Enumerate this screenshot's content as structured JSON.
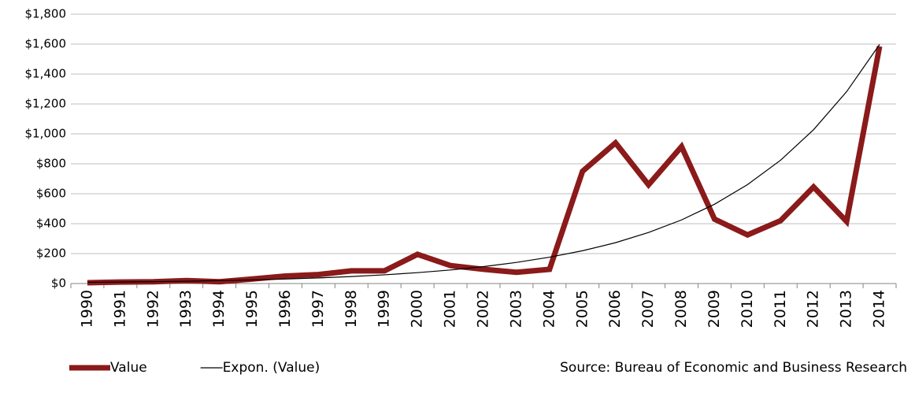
{
  "chart_data": {
    "type": "line",
    "categories": [
      "1990",
      "1991",
      "1992",
      "1993",
      "1994",
      "1995",
      "1996",
      "1997",
      "1998",
      "1999",
      "2000",
      "2001",
      "2002",
      "2003",
      "2004",
      "2005",
      "2006",
      "2007",
      "2008",
      "2009",
      "2010",
      "2011",
      "2012",
      "2013",
      "2014"
    ],
    "series": [
      {
        "name": "Value",
        "color": "#8b1a1a",
        "width": 7,
        "values": [
          5,
          10,
          12,
          20,
          12,
          30,
          50,
          60,
          85,
          85,
          195,
          120,
          95,
          75,
          95,
          750,
          940,
          660,
          915,
          430,
          325,
          420,
          645,
          415,
          1585
        ]
      },
      {
        "name": "Expon. (Value)",
        "color": "#000000",
        "width": 1.2,
        "values": [
          8,
          10,
          12.4,
          15.5,
          19.3,
          24.1,
          30,
          37.4,
          46.7,
          58.2,
          72.6,
          90.5,
          113,
          141,
          176,
          219,
          273,
          341,
          425,
          530,
          661,
          824,
          1028,
          1282,
          1598
        ]
      }
    ],
    "ylim": [
      0,
      1800
    ],
    "yticks": [
      {
        "value": 0,
        "label": "$0"
      },
      {
        "value": 200,
        "label": "$200"
      },
      {
        "value": 400,
        "label": "$400"
      },
      {
        "value": 600,
        "label": "$600"
      },
      {
        "value": 800,
        "label": "$800"
      },
      {
        "value": 1000,
        "label": "$1,000"
      },
      {
        "value": 1200,
        "label": "$1,200"
      },
      {
        "value": 1400,
        "label": "$1,400"
      },
      {
        "value": 1600,
        "label": "$1,600"
      },
      {
        "value": 1800,
        "label": "$1,800"
      }
    ],
    "grid": true,
    "legend": "bottom-left",
    "source": "Source: Bureau of Economic and Business Research"
  }
}
